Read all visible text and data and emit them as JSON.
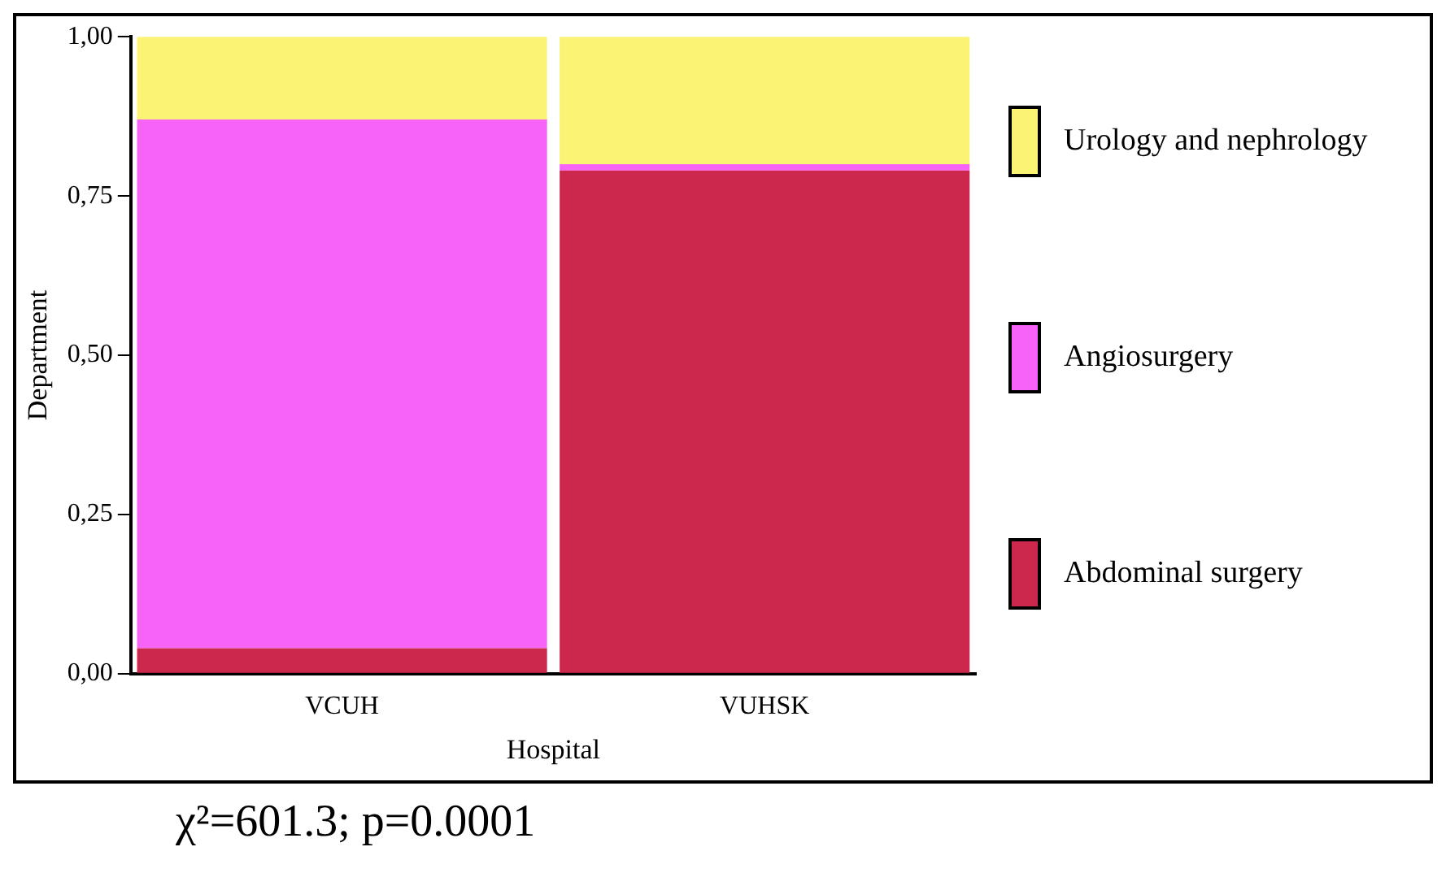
{
  "chart_data": {
    "type": "bar",
    "stacked": true,
    "xlabel": "Hospital",
    "ylabel": "Department",
    "categories": [
      "VCUH",
      "VUHSK"
    ],
    "series": [
      {
        "name": "Abdominal surgery",
        "color": "#cc274c",
        "values": [
          0.04,
          0.79
        ]
      },
      {
        "name": "Angiosurgery",
        "color": "#f663f6",
        "values": [
          0.83,
          0.01
        ]
      },
      {
        "name": "Urology and nephrology",
        "color": "#faf373",
        "values": [
          0.13,
          0.2
        ]
      }
    ],
    "ylim": [
      0,
      1
    ],
    "yticks": [
      {
        "value": 0,
        "label": "0,00"
      },
      {
        "value": 0.25,
        "label": "0,25"
      },
      {
        "value": 0.5,
        "label": "0,50"
      },
      {
        "value": 0.75,
        "label": "0,75"
      },
      {
        "value": 1,
        "label": "1,00"
      }
    ],
    "grid": false,
    "legend": "right",
    "annotations": [
      "χ²=601.3; p=0.0001"
    ]
  }
}
